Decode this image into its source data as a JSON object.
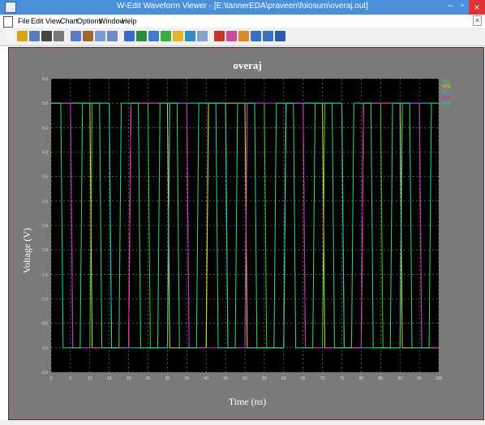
{
  "window": {
    "title": "W-Edit Waveform Viewer - [E:\\tannerEDA\\praveen\\foiosum\\overaj.out]",
    "minimize_glyph": "–",
    "restore_glyph": "▫",
    "close_glyph": "×"
  },
  "menu": {
    "items": [
      "File",
      "Edit",
      "View",
      "Chart",
      "Options",
      "Window",
      "Help"
    ],
    "mdi_close_glyph": "×"
  },
  "toolbar": {
    "icons": [
      "new-icon",
      "open-icon",
      "save-icon",
      "print-icon",
      "cut-icon",
      "copy-icon",
      "paste-icon",
      "list-icon",
      "grid-icon",
      "chart-icon",
      "lock-icon",
      "chart-blue-icon",
      "chart-green-icon",
      "chart-yellow-icon",
      "chart-stack-icon",
      "zoom-icon",
      "cursor-icon",
      "measure-icon",
      "marker-icon",
      "pause-icon",
      "play-icon",
      "pen-icon"
    ],
    "colors": [
      "#f5f5f5",
      "#d9a41a",
      "#5a7cc2",
      "#444",
      "#777",
      "#5a7cc2",
      "#9b6a2c",
      "#7a9bd6",
      "#6b8cc9",
      "#3c6cc9",
      "#2a8a3a",
      "#3c7fd0",
      "#3faa3f",
      "#e3b52a",
      "#2e8fc9",
      "#8aa0c9",
      "#c0392b",
      "#cf4a9a",
      "#d98a2a",
      "#3a6fc4",
      "#3a6fc4",
      "#2b5bb0"
    ]
  },
  "chart_data": {
    "type": "line",
    "title": "overaj",
    "xlabel": "Time (ns)",
    "ylabel": "Voltage (V)",
    "xlim": [
      0,
      100
    ],
    "ylim": [
      -0.5,
      5.5
    ],
    "x_ticks": [
      0,
      5,
      10,
      15,
      20,
      25,
      30,
      35,
      40,
      45,
      50,
      55,
      60,
      65,
      70,
      75,
      80,
      85,
      90,
      95,
      100
    ],
    "y_ticks": [
      -0.5,
      0.0,
      0.5,
      1.0,
      1.5,
      2.0,
      2.5,
      3.0,
      3.5,
      4.0,
      4.5,
      5.0,
      5.5
    ],
    "grid": true,
    "background": "#000000",
    "legend_position": "top-right",
    "legend": [
      "v(a)",
      "v(b)",
      "v(c)",
      "v(d)",
      "v(e)"
    ],
    "series": [
      {
        "color": "#22dd22",
        "edges": [
          0,
          5,
          10,
          15,
          20,
          25,
          30,
          35,
          40,
          45,
          50,
          55,
          60,
          65,
          70,
          75,
          80,
          85,
          90,
          95,
          100
        ],
        "start": 1
      },
      {
        "color": "#dddd22",
        "edges": [
          0,
          10,
          20,
          30,
          40,
          50,
          60,
          70,
          80,
          90,
          100
        ],
        "start": 1
      },
      {
        "color": "#22cccc",
        "edges": [
          0,
          15,
          30,
          45,
          60,
          75,
          90
        ],
        "start": 1
      },
      {
        "color": "#dd22dd",
        "edges": [
          5,
          20,
          35,
          50,
          65,
          80,
          95
        ],
        "start": 1
      },
      {
        "color": "#22dd88",
        "edges": [
          2.5,
          7.5,
          12.5,
          17.5,
          22.5,
          27.5,
          32.5,
          37.5,
          42.5,
          47.5,
          52.5,
          57.5,
          62.5,
          67.5,
          72.5,
          77.5,
          82.5,
          87.5,
          92.5,
          97.5
        ],
        "start": 1
      }
    ]
  }
}
